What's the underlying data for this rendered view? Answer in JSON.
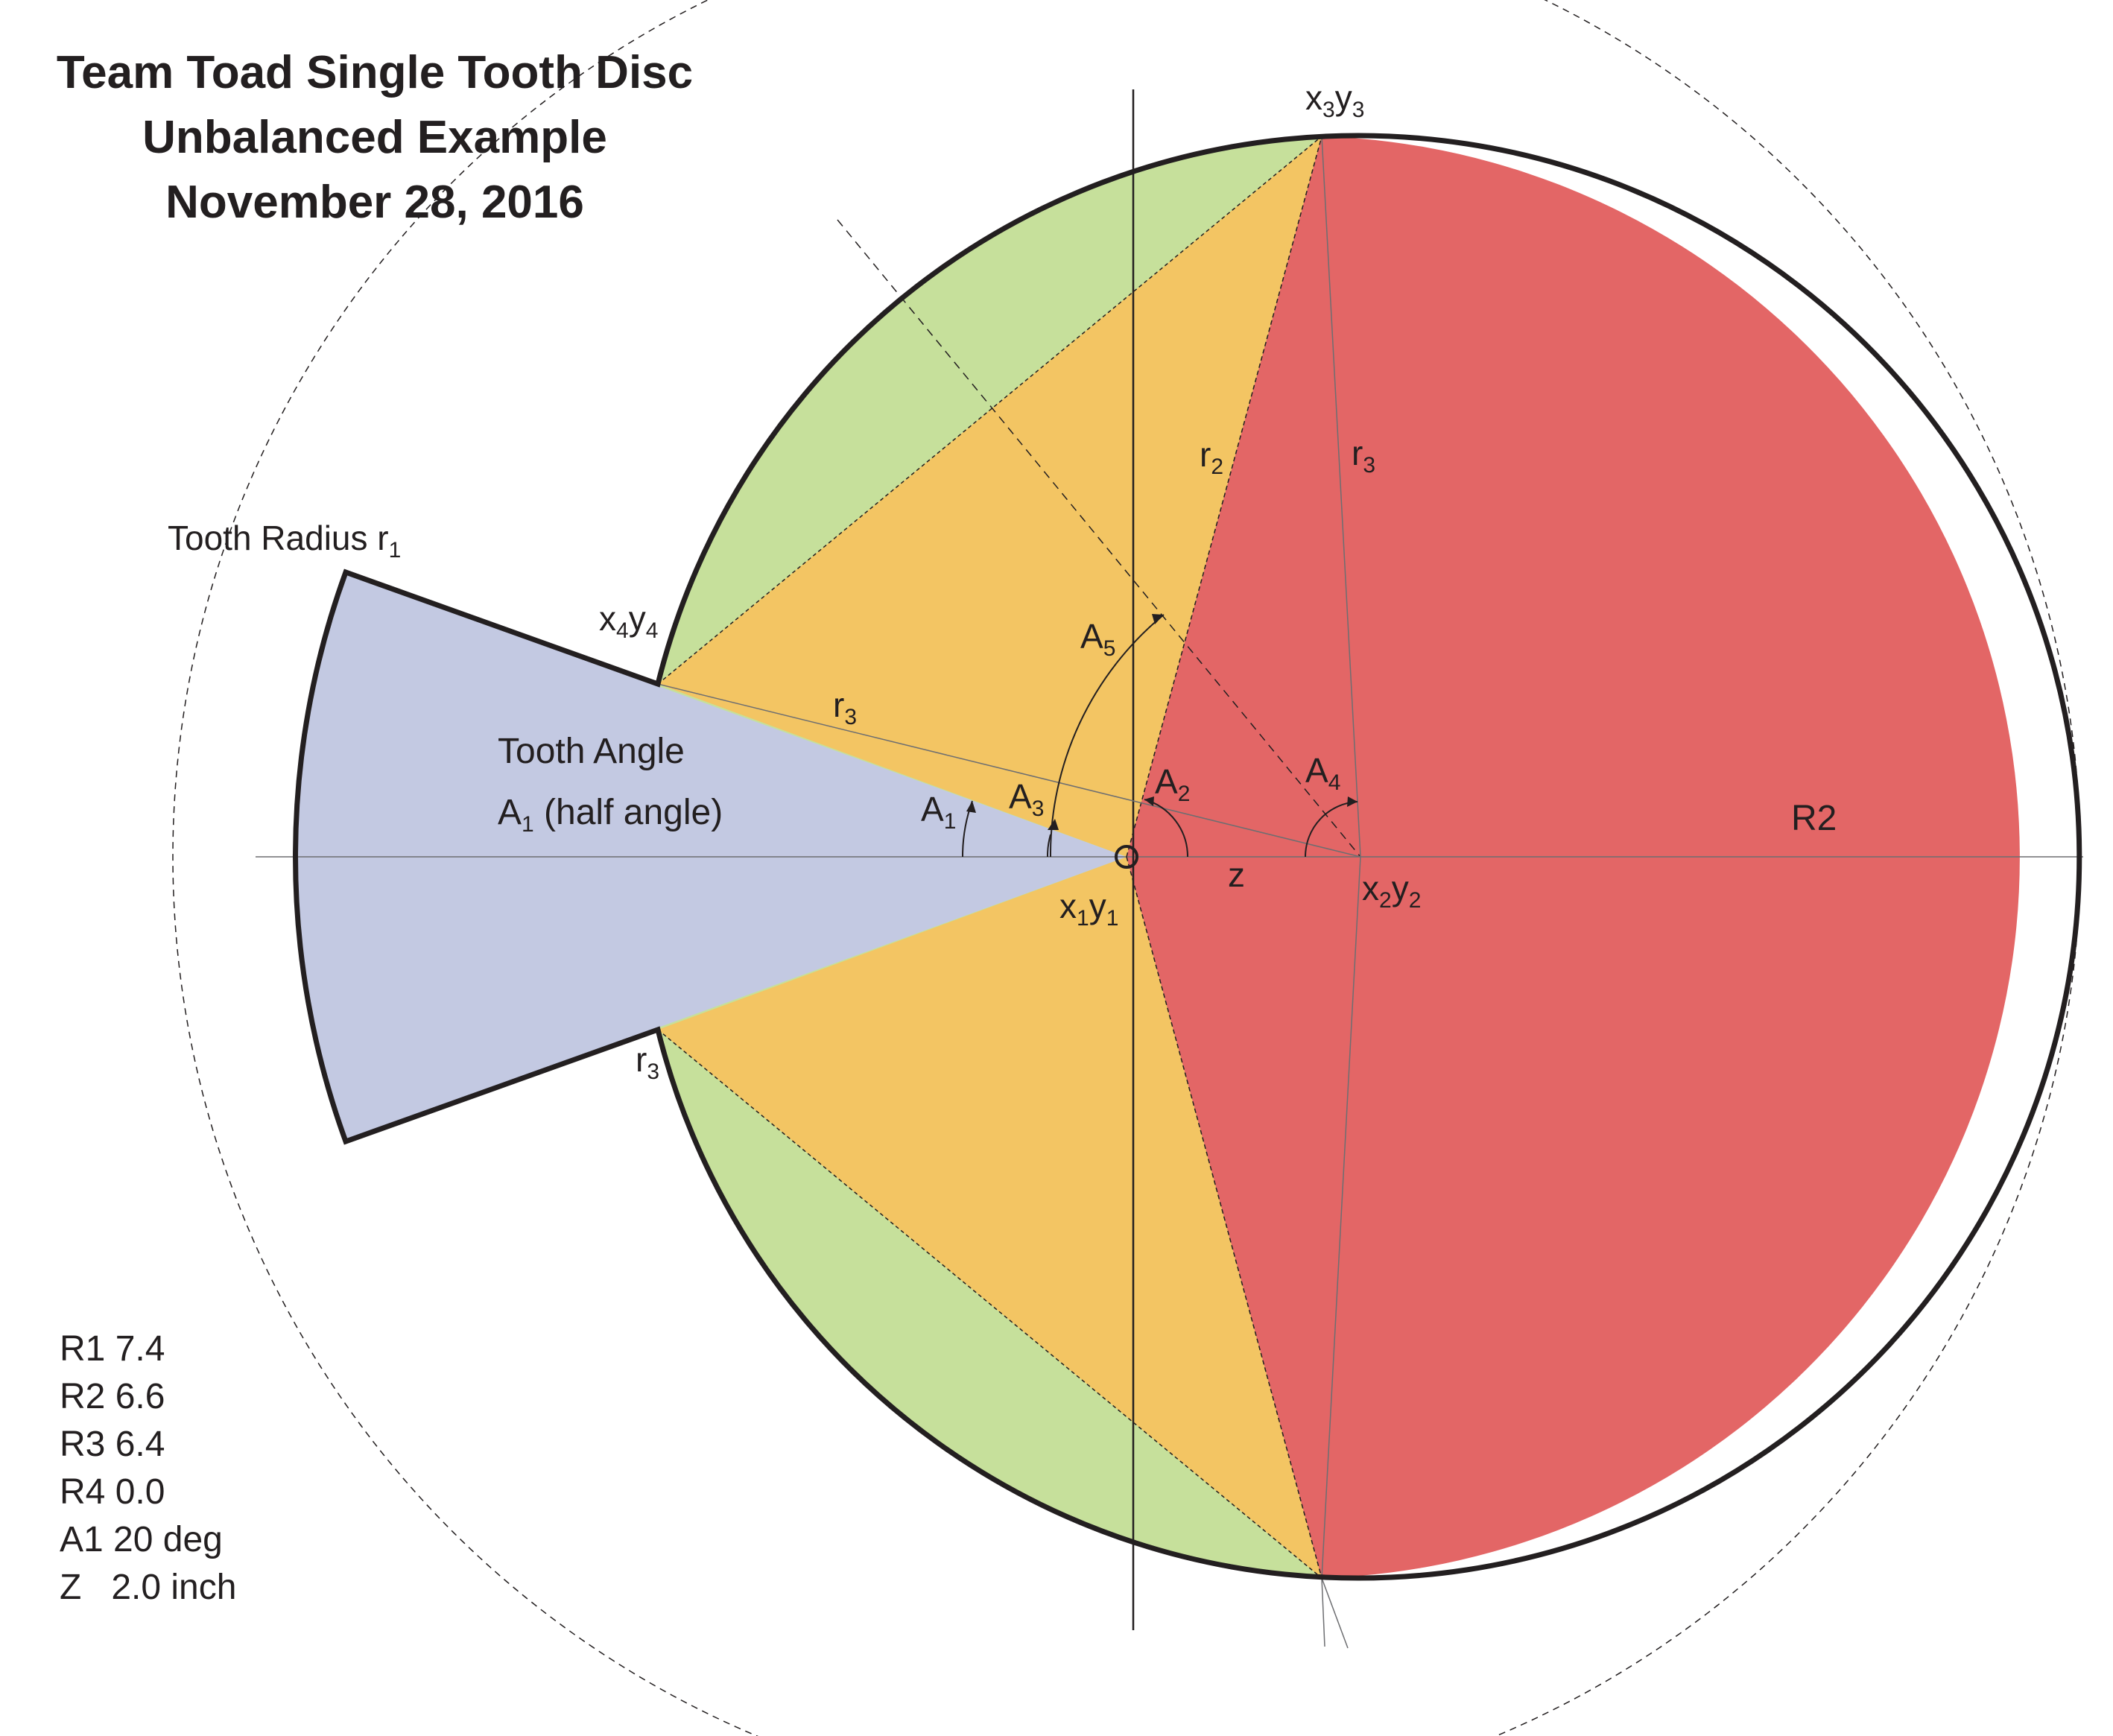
{
  "title": {
    "line1": "Team Toad Single Tooth Disc",
    "line2": "Unbalanced Example",
    "line3": "November 28, 2016"
  },
  "labels": {
    "x3y3": {
      "a": "x",
      "s1": "3",
      "b": "y",
      "s2": "3"
    },
    "x4y4": {
      "a": "x",
      "s1": "4",
      "b": "y",
      "s2": "4"
    },
    "x1y1": {
      "a": "x",
      "s1": "1",
      "b": "y",
      "s2": "1"
    },
    "x2y2": {
      "a": "x",
      "s1": "2",
      "b": "y",
      "s2": "2"
    },
    "r2": {
      "a": "r",
      "s": "2"
    },
    "r3_upper": {
      "a": "r",
      "s": "3"
    },
    "r3_left": {
      "a": "r",
      "s": "3"
    },
    "r3_lower": {
      "a": "r",
      "s": "3"
    },
    "tooth_radius": {
      "a": "Tooth Radius r",
      "s": "1"
    },
    "tooth_angle": "Tooth Angle",
    "half_angle": {
      "a": "A",
      "s": "1",
      "b": " (half angle)"
    },
    "A1": {
      "a": "A",
      "s": "1"
    },
    "A2": {
      "a": "A",
      "s": "2"
    },
    "A3": {
      "a": "A",
      "s": "3"
    },
    "A4": {
      "a": "A",
      "s": "4"
    },
    "A5": {
      "a": "A",
      "s": "5"
    },
    "z": "z",
    "R2": "R2"
  },
  "parameters": [
    "R1 7.4",
    "R2 6.6",
    "R3 6.4",
    "R4 0.0",
    "A1 20 deg",
    "Z   2.0 inch"
  ],
  "colors": {
    "tooth": "#c3c9e2",
    "green": "#c6e09b",
    "orange": "#f3c563",
    "red": "#e36666",
    "ink": "#231f20"
  }
}
